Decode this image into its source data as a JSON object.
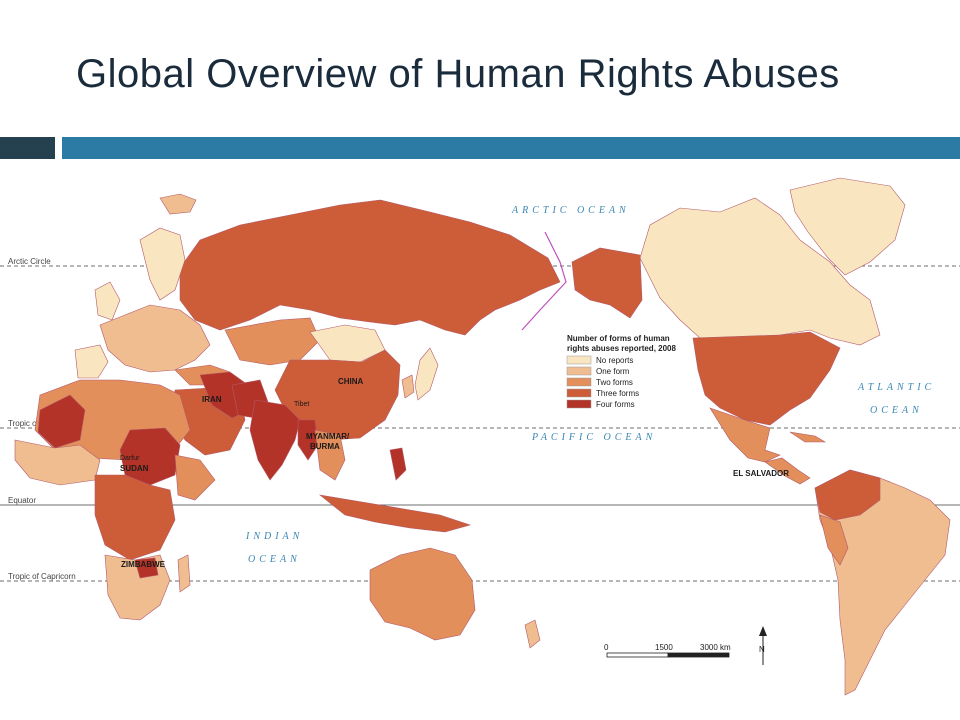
{
  "title": "Global Overview of Human Rights Abuses",
  "colors": {
    "no_reports": "#f9e6c1",
    "one_form": "#efbd90",
    "two_forms": "#e28f5c",
    "three_forms": "#cc5d38",
    "four_forms": "#b43328",
    "ocean_text": "#3a86b4",
    "title_bar_dark": "#25414f",
    "title_bar_blue": "#2b7ba4",
    "date_line": "#c050c0"
  },
  "reference_lines": {
    "arctic_circle": "Arctic Circle",
    "tropic_of_cancer": "Tropic of Cancer",
    "equator": "Equator",
    "tropic_of_capricorn": "Tropic of Capricorn"
  },
  "oceans": {
    "arctic": "ARCTIC   OCEAN",
    "pacific": "PACIFIC   OCEAN",
    "atlantic_1": "ATLANTIC",
    "atlantic_2": "OCEAN",
    "indian_1": "INDIAN",
    "indian_2": "OCEAN"
  },
  "places": {
    "china": "CHINA",
    "iran": "IRAN",
    "tibet": "Tibet",
    "myanmar_1": "MYANMAR/",
    "myanmar_2": "BURMA",
    "darfur": "Darfur",
    "sudan": "SUDAN",
    "zimbabwe": "ZIMBABWE",
    "el_salvador": "EL SALVADOR"
  },
  "legend": {
    "title_line1": "Number of forms of human",
    "title_line2": "rights abuses reported, 2008",
    "items": [
      "No reports",
      "One form",
      "Two forms",
      "Three forms",
      "Four forms"
    ]
  },
  "scale": {
    "labels": [
      "0",
      "1500",
      "3000 km"
    ]
  },
  "north_arrow": {
    "label": "N"
  }
}
